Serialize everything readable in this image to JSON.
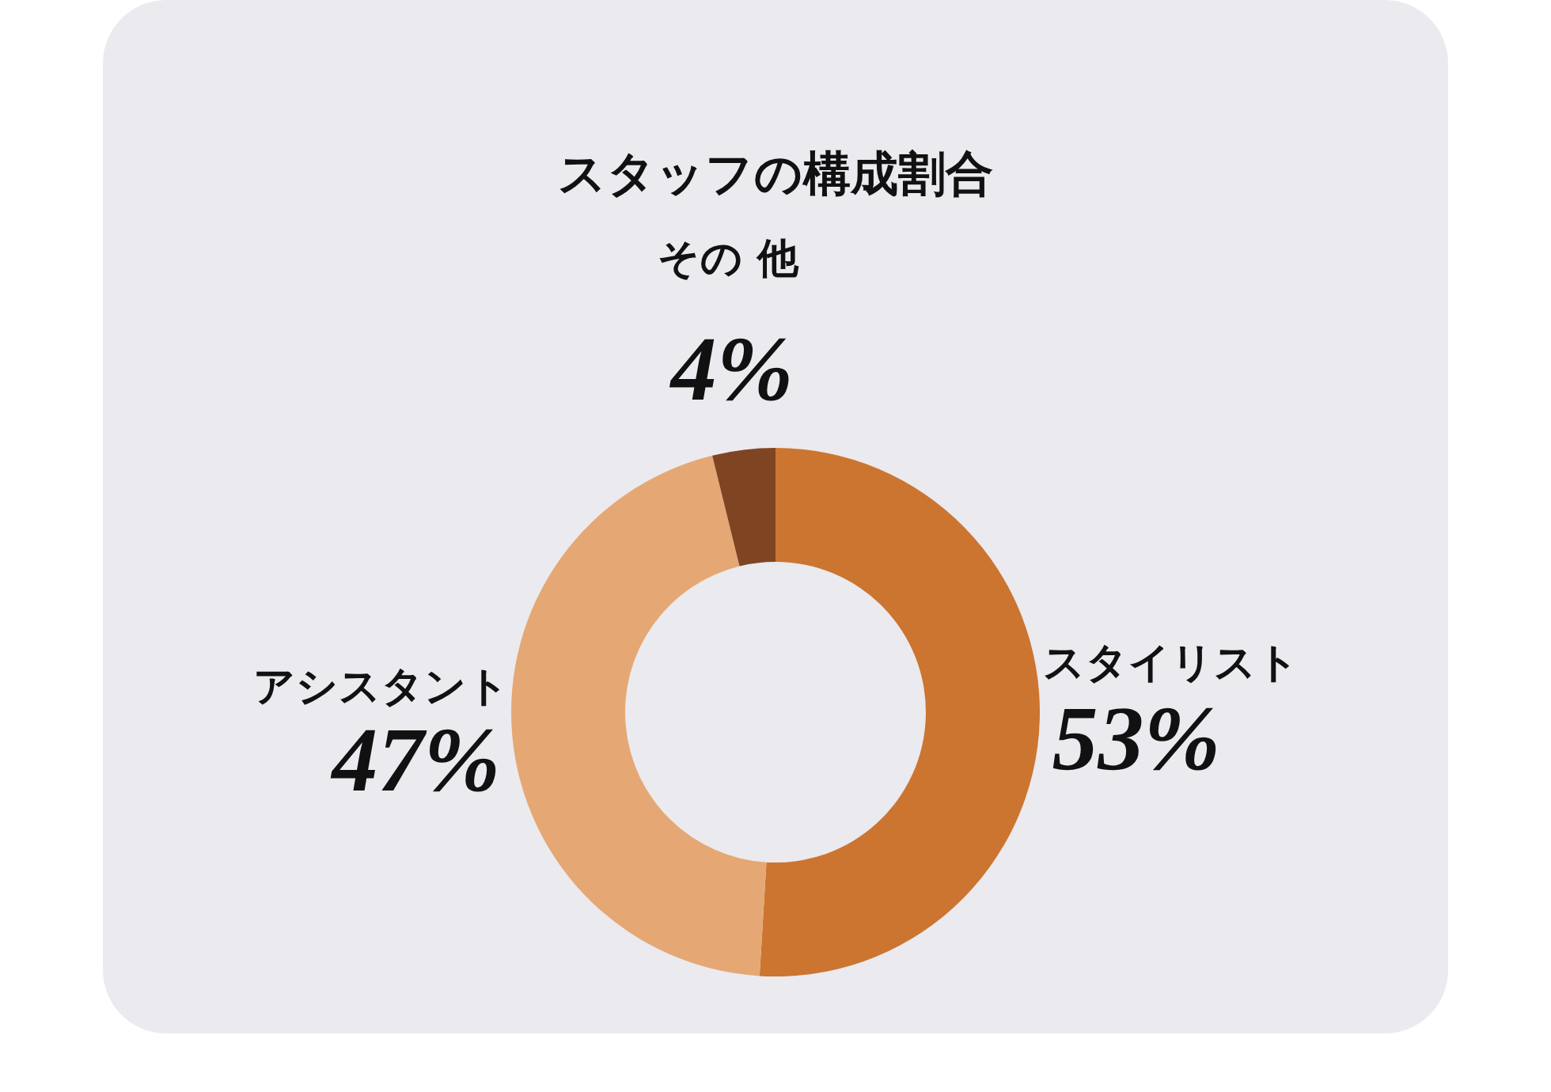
{
  "chart_data": {
    "type": "donut",
    "title": "スタッフの構成割合",
    "categories": [
      "スタイリスト",
      "アシスタント",
      "その 他"
    ],
    "values": [
      53,
      47,
      4
    ],
    "value_labels": [
      "53%",
      "47%",
      "4%"
    ],
    "colors": [
      "#cc7530",
      "#e5a874",
      "#7f4523"
    ],
    "legend": false
  }
}
